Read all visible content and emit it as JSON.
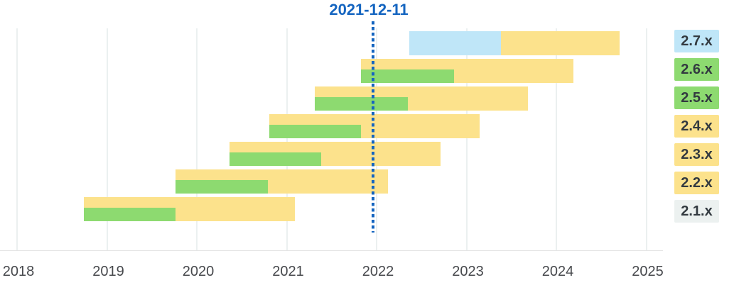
{
  "chart_data": {
    "type": "gantt",
    "title": "2021-12-11",
    "marker": {
      "label": "2021-12-11",
      "year": 2021.96,
      "color": "#1565C0"
    },
    "x_axis": {
      "ticks": [
        2018,
        2019,
        2020,
        2021,
        2022,
        2023,
        2024,
        2025
      ]
    },
    "x_range": [
      2018,
      2025
    ],
    "grid": true,
    "legend_position": "right",
    "status_colors": {
      "future": "#BFE6F8",
      "active": "#8DDA70",
      "security": "#FCE28C",
      "eol": "#ECF1F0"
    },
    "rows": [
      {
        "version": "2.7.x",
        "legend_status": "future",
        "segments": [
          {
            "status": "future",
            "layer": "base",
            "start": 2022.36,
            "end": 2023.38
          },
          {
            "status": "security",
            "layer": "base",
            "start": 2023.38,
            "end": 2024.7
          }
        ]
      },
      {
        "version": "2.6.x",
        "legend_status": "active",
        "segments": [
          {
            "status": "security",
            "layer": "base",
            "start": 2021.83,
            "end": 2024.19
          },
          {
            "status": "active",
            "layer": "overlay",
            "start": 2021.83,
            "end": 2022.86
          }
        ]
      },
      {
        "version": "2.5.x",
        "legend_status": "active",
        "segments": [
          {
            "status": "security",
            "layer": "base",
            "start": 2021.31,
            "end": 2023.68
          },
          {
            "status": "active",
            "layer": "overlay",
            "start": 2021.31,
            "end": 2022.35
          }
        ]
      },
      {
        "version": "2.4.x",
        "legend_status": "security",
        "segments": [
          {
            "status": "security",
            "layer": "base",
            "start": 2020.81,
            "end": 2023.15
          },
          {
            "status": "active",
            "layer": "overlay",
            "start": 2020.81,
            "end": 2021.83
          }
        ]
      },
      {
        "version": "2.3.x",
        "legend_status": "security",
        "segments": [
          {
            "status": "security",
            "layer": "base",
            "start": 2020.36,
            "end": 2022.71
          },
          {
            "status": "active",
            "layer": "overlay",
            "start": 2020.36,
            "end": 2021.38
          }
        ]
      },
      {
        "version": "2.2.x",
        "legend_status": "security",
        "segments": [
          {
            "status": "security",
            "layer": "base",
            "start": 2019.76,
            "end": 2022.13
          },
          {
            "status": "active",
            "layer": "overlay",
            "start": 2019.76,
            "end": 2020.79
          }
        ]
      },
      {
        "version": "2.1.x",
        "legend_status": "eol",
        "segments": [
          {
            "status": "security",
            "layer": "base",
            "start": 2018.74,
            "end": 2021.09
          },
          {
            "status": "active",
            "layer": "overlay",
            "start": 2018.74,
            "end": 2019.76
          }
        ]
      }
    ],
    "legend": {
      "items": [
        {
          "label": "2.7.x",
          "status": "future"
        },
        {
          "label": "2.6.x",
          "status": "active"
        },
        {
          "label": "2.5.x",
          "status": "active"
        },
        {
          "label": "2.4.x",
          "status": "security"
        },
        {
          "label": "2.3.x",
          "status": "security"
        },
        {
          "label": "2.2.x",
          "status": "security"
        },
        {
          "label": "2.1.x",
          "status": "eol"
        }
      ]
    }
  }
}
